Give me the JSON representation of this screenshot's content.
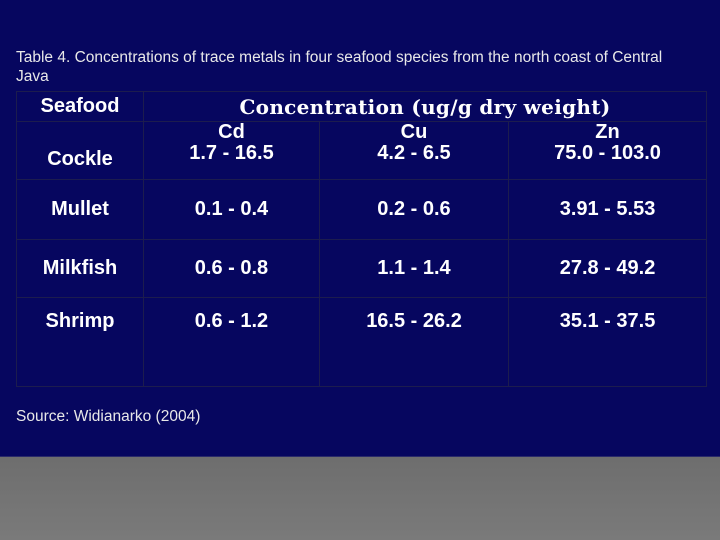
{
  "caption": "Table 4. Concentrations of trace metals in four seafood species from the north coast of Central Java",
  "table": {
    "seafood_header": "Seafood",
    "concentration_header": "Concentration (ug/g dry weight)",
    "metals": [
      "Cd",
      "Cu",
      "Zn"
    ],
    "rows": [
      {
        "name": "Cockle",
        "values": [
          "1.7 - 16.5",
          "4.2 - 6.5",
          "75.0 - 103.0"
        ]
      },
      {
        "name": "Mullet",
        "values": [
          "0.1 - 0.4",
          "0.2 - 0.6",
          "3.91 - 5.53"
        ]
      },
      {
        "name": "Milkfish",
        "values": [
          "0.6 - 0.8",
          "1.1 - 1.4",
          "27.8 - 49.2"
        ]
      },
      {
        "name": "Shrimp",
        "values": [
          "0.6 - 1.2",
          "16.5 - 26.2",
          "35.1 - 37.5"
        ]
      }
    ]
  },
  "source": "Source: Widianarko (2004)",
  "colors": {
    "panel_background": "#06065f",
    "text": "#ffffff",
    "grid_line": "#1c1c4e"
  }
}
